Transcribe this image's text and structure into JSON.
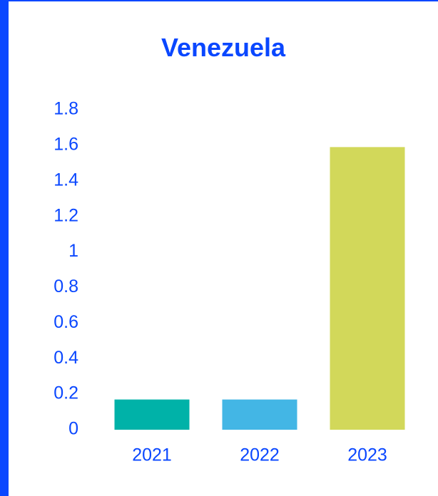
{
  "chart_data": {
    "type": "bar",
    "title": "Venezuela",
    "categories": [
      "2021",
      "2022",
      "2023"
    ],
    "values": [
      0.17,
      0.17,
      1.59
    ],
    "bar_colors": [
      "#00b2a8",
      "#43b6e5",
      "#d2d85a"
    ],
    "ylim": [
      0,
      1.8
    ],
    "yticks": [
      "0",
      "0.2",
      "0.4",
      "0.6",
      "0.8",
      "1",
      "1.2",
      "1.4",
      "1.6",
      "1.8"
    ],
    "xlabel": "",
    "ylabel": "",
    "grid": false,
    "legend": "none"
  },
  "colors": {
    "accent": "#0a47ff",
    "text": "#0a47ff"
  }
}
